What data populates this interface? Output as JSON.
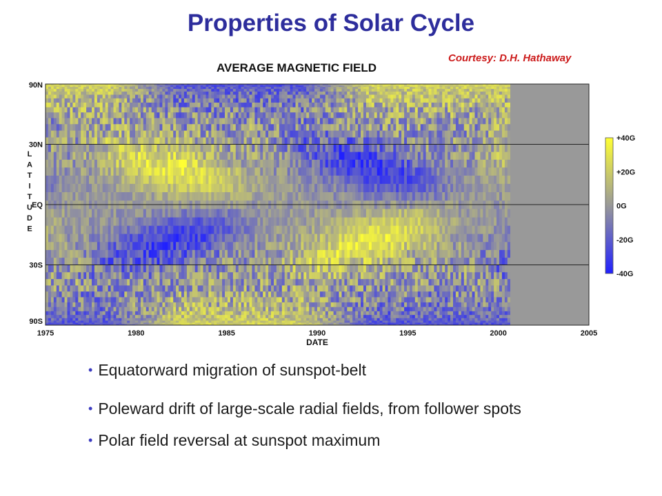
{
  "slide": {
    "title": "Properties of Solar Cycle",
    "credit": "Courtesy: D.H. Hathaway"
  },
  "chart_data": {
    "type": "heatmap",
    "title": "AVERAGE MAGNETIC FIELD",
    "xlabel": "DATE",
    "ylabel": "LATITUDE",
    "xlim": [
      1975,
      2005
    ],
    "x_ticks": [
      1975,
      1980,
      1985,
      1990,
      1995,
      2000,
      2005
    ],
    "x_tick_labels": [
      "1975",
      "1980",
      "1985",
      "1990",
      "1995",
      "2000",
      "2005"
    ],
    "data_end_x": 2000.6,
    "y_ticks": [
      90,
      30,
      0,
      -30,
      -90
    ],
    "y_tick_labels": [
      "90N",
      "30N",
      "EQ",
      "30S",
      "90S"
    ],
    "y_scale": "sine-latitude",
    "gridlines_y": [
      30,
      0,
      -30
    ],
    "colorbar": {
      "ticks": [
        40,
        20,
        0,
        -20,
        -40
      ],
      "tick_labels": [
        "+40G",
        "+20G",
        "0G",
        "-20G",
        "-40G"
      ],
      "range": [
        -40,
        40
      ],
      "colors": {
        "high": "#ffff33",
        "mid": "#999999",
        "low": "#2020ff"
      }
    },
    "no_data_color": "#999999"
  },
  "bullets": [
    "Equatorward migration of sunspot-belt",
    "Poleward drift of large-scale radial fields, from follower spots",
    "Polar field reversal at sunspot maximum"
  ],
  "colors": {
    "title": "#2d2d9c",
    "credit": "#cc1b1b",
    "bullet_dot": "#3a3ac0"
  }
}
